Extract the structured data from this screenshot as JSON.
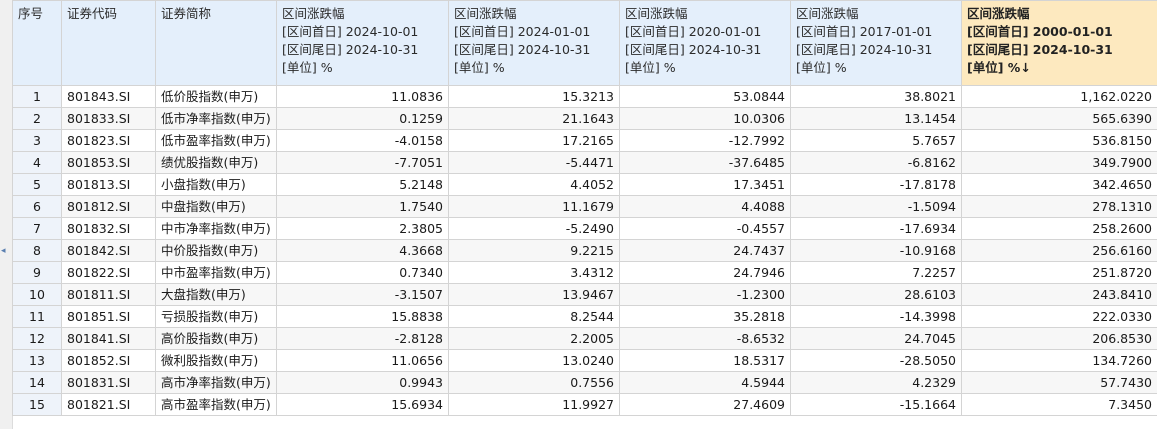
{
  "headers": {
    "idx": "序号",
    "code": "证券代码",
    "name": "证券简称",
    "ranges": [
      {
        "title": "区间涨跌幅",
        "start": "[区间首日] 2024-10-01",
        "end": "[区间尾日] 2024-10-31",
        "unit": "[单位] %"
      },
      {
        "title": "区间涨跌幅",
        "start": "[区间首日] 2024-01-01",
        "end": "[区间尾日] 2024-10-31",
        "unit": "[单位] %"
      },
      {
        "title": "区间涨跌幅",
        "start": "[区间首日] 2020-01-01",
        "end": "[区间尾日] 2024-10-31",
        "unit": "[单位] %"
      },
      {
        "title": "区间涨跌幅",
        "start": "[区间首日] 2017-01-01",
        "end": "[区间尾日] 2024-10-31",
        "unit": "[单位] %"
      },
      {
        "title": "区间涨跌幅",
        "start": "[区间首日] 2000-01-01",
        "end": "[区间尾日] 2024-10-31",
        "unit": "[单位] %",
        "sort": "↓"
      }
    ]
  },
  "rows": [
    {
      "idx": "1",
      "code": "801843.SI",
      "name": "低价股指数(申万)",
      "v": [
        "11.0836",
        "15.3213",
        "53.0844",
        "38.8021",
        "1,162.0220"
      ]
    },
    {
      "idx": "2",
      "code": "801833.SI",
      "name": "低市净率指数(申万)",
      "v": [
        "0.1259",
        "21.1643",
        "10.0306",
        "13.1454",
        "565.6390"
      ]
    },
    {
      "idx": "3",
      "code": "801823.SI",
      "name": "低市盈率指数(申万)",
      "v": [
        "-4.0158",
        "17.2165",
        "-12.7992",
        "5.7657",
        "536.8150"
      ]
    },
    {
      "idx": "4",
      "code": "801853.SI",
      "name": "绩优股指数(申万)",
      "v": [
        "-7.7051",
        "-5.4471",
        "-37.6485",
        "-6.8162",
        "349.7900"
      ]
    },
    {
      "idx": "5",
      "code": "801813.SI",
      "name": "小盘指数(申万)",
      "v": [
        "5.2148",
        "4.4052",
        "17.3451",
        "-17.8178",
        "342.4650"
      ]
    },
    {
      "idx": "6",
      "code": "801812.SI",
      "name": "中盘指数(申万)",
      "v": [
        "1.7540",
        "11.1679",
        "4.4088",
        "-1.5094",
        "278.1310"
      ]
    },
    {
      "idx": "7",
      "code": "801832.SI",
      "name": "中市净率指数(申万)",
      "v": [
        "2.3805",
        "-5.2490",
        "-0.4557",
        "-17.6934",
        "258.2600"
      ]
    },
    {
      "idx": "8",
      "code": "801842.SI",
      "name": "中价股指数(申万)",
      "v": [
        "4.3668",
        "9.2215",
        "24.7437",
        "-10.9168",
        "256.6160"
      ]
    },
    {
      "idx": "9",
      "code": "801822.SI",
      "name": "中市盈率指数(申万)",
      "v": [
        "0.7340",
        "3.4312",
        "24.7946",
        "7.2257",
        "251.8720"
      ]
    },
    {
      "idx": "10",
      "code": "801811.SI",
      "name": "大盘指数(申万)",
      "v": [
        "-3.1507",
        "13.9467",
        "-1.2300",
        "28.6103",
        "243.8410"
      ]
    },
    {
      "idx": "11",
      "code": "801851.SI",
      "name": "亏损股指数(申万)",
      "v": [
        "15.8838",
        "8.2544",
        "35.2818",
        "-14.3998",
        "222.0330"
      ]
    },
    {
      "idx": "12",
      "code": "801841.SI",
      "name": "高价股指数(申万)",
      "v": [
        "-2.8128",
        "2.2005",
        "-8.6532",
        "24.7045",
        "206.8530"
      ]
    },
    {
      "idx": "13",
      "code": "801852.SI",
      "name": "微利股指数(申万)",
      "v": [
        "11.0656",
        "13.0240",
        "18.5317",
        "-28.5050",
        "134.7260"
      ]
    },
    {
      "idx": "14",
      "code": "801831.SI",
      "name": "高市净率指数(申万)",
      "v": [
        "0.9943",
        "0.7556",
        "4.5944",
        "4.2329",
        "57.7430"
      ]
    },
    {
      "idx": "15",
      "code": "801821.SI",
      "name": "高市盈率指数(申万)",
      "v": [
        "15.6934",
        "11.9927",
        "27.4609",
        "-15.1664",
        "7.3450"
      ]
    }
  ]
}
